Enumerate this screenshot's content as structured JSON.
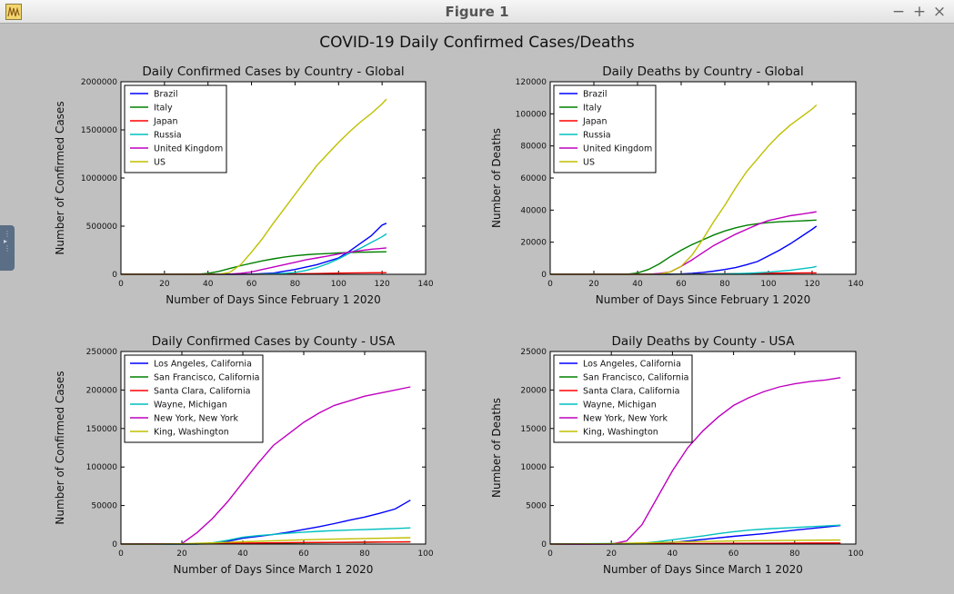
{
  "window": {
    "title": "Figure 1",
    "icon": "matplotlib-app-icon",
    "buttons": [
      {
        "name": "minimize-button",
        "label": "−"
      },
      {
        "name": "maximize-button",
        "label": "+"
      },
      {
        "name": "close-button",
        "label": "×"
      }
    ]
  },
  "figure_title": "COVID-19 Daily Confirmed Cases/Deaths",
  "colors": {
    "blue": "#0000ff",
    "green": "#008000",
    "red": "#ff0000",
    "cyan": "#00bfbf",
    "magenta": "#bf00bf",
    "yellow": "#bfbf00",
    "background": "#c0c0c0"
  },
  "chart_data": [
    {
      "type": "line",
      "title": "Daily Confirmed Cases by Country - Global",
      "xlabel": "Number of Days Since February 1 2020",
      "ylabel": "Number of Confirmed Cases",
      "xlim": [
        0,
        140
      ],
      "ylim": [
        0,
        2000000
      ],
      "xticks": [
        "0",
        "20",
        "40",
        "60",
        "80",
        "100",
        "120",
        "140"
      ],
      "yticks": [
        "0",
        "500000",
        "1000000",
        "1500000",
        "2000000"
      ],
      "legend": "upper-left",
      "series": [
        {
          "name": "Brazil",
          "color": "#0000ff",
          "x": [
            0,
            50,
            60,
            70,
            80,
            90,
            100,
            105,
            110,
            115,
            120,
            122
          ],
          "y": [
            0,
            0,
            2000,
            12000,
            50000,
            100000,
            170000,
            240000,
            320000,
            400000,
            510000,
            530000
          ]
        },
        {
          "name": "Italy",
          "color": "#008000",
          "x": [
            0,
            29,
            35,
            40,
            45,
            50,
            55,
            60,
            65,
            70,
            75,
            80,
            85,
            90,
            95,
            100,
            105,
            110,
            115,
            120,
            122
          ],
          "y": [
            0,
            0,
            1000,
            9000,
            30000,
            60000,
            90000,
            115000,
            140000,
            160000,
            178000,
            192000,
            203000,
            210000,
            215000,
            222000,
            226000,
            229000,
            231000,
            233000,
            234000
          ]
        },
        {
          "name": "Japan",
          "color": "#ff0000",
          "x": [
            0,
            60,
            70,
            80,
            90,
            100,
            110,
            122
          ],
          "y": [
            0,
            500,
            2000,
            4500,
            8000,
            12000,
            15000,
            17000
          ]
        },
        {
          "name": "Russia",
          "color": "#00bfbf",
          "x": [
            0,
            60,
            65,
            70,
            75,
            80,
            85,
            90,
            95,
            100,
            105,
            110,
            115,
            120,
            122
          ],
          "y": [
            0,
            500,
            1500,
            4500,
            10000,
            20000,
            40000,
            70000,
            110000,
            160000,
            220000,
            270000,
            330000,
            390000,
            420000
          ]
        },
        {
          "name": "United Kingdom",
          "color": "#bf00bf",
          "x": [
            0,
            40,
            50,
            55,
            60,
            65,
            70,
            75,
            80,
            85,
            90,
            95,
            100,
            105,
            110,
            115,
            120,
            122
          ],
          "y": [
            0,
            0,
            2000,
            10000,
            25000,
            50000,
            75000,
            100000,
            125000,
            150000,
            170000,
            190000,
            210000,
            230000,
            245000,
            260000,
            270000,
            275000
          ]
        },
        {
          "name": "US",
          "color": "#bfbf00",
          "x": [
            0,
            45,
            50,
            55,
            60,
            65,
            70,
            75,
            80,
            85,
            90,
            95,
            100,
            105,
            110,
            115,
            120,
            122
          ],
          "y": [
            0,
            0,
            20000,
            100000,
            230000,
            370000,
            530000,
            680000,
            830000,
            980000,
            1130000,
            1250000,
            1370000,
            1480000,
            1580000,
            1670000,
            1770000,
            1820000
          ]
        }
      ]
    },
    {
      "type": "line",
      "title": "Daily Deaths by Country - Global",
      "xlabel": "Number of Days Since February 1 2020",
      "ylabel": "Number of Deaths",
      "xlim": [
        0,
        140
      ],
      "ylim": [
        0,
        120000
      ],
      "xticks": [
        "0",
        "20",
        "40",
        "60",
        "80",
        "100",
        "120",
        "140"
      ],
      "yticks": [
        "0",
        "20000",
        "40000",
        "60000",
        "80000",
        "100000",
        "120000"
      ],
      "legend": "upper-left",
      "series": [
        {
          "name": "Brazil",
          "color": "#0000ff",
          "x": [
            0,
            55,
            60,
            65,
            70,
            75,
            80,
            85,
            90,
            95,
            100,
            105,
            110,
            115,
            120,
            122
          ],
          "y": [
            0,
            0,
            200,
            600,
            1200,
            2000,
            3000,
            4200,
            6000,
            8000,
            11500,
            15000,
            19000,
            23500,
            28000,
            30000
          ]
        },
        {
          "name": "Italy",
          "color": "#008000",
          "x": [
            0,
            35,
            40,
            45,
            50,
            55,
            60,
            65,
            70,
            75,
            80,
            85,
            90,
            95,
            100,
            105,
            110,
            115,
            120,
            122
          ],
          "y": [
            0,
            0,
            800,
            3000,
            6500,
            11000,
            15000,
            18500,
            21500,
            24500,
            27000,
            29000,
            30500,
            31500,
            32200,
            32700,
            33000,
            33300,
            33600,
            33800
          ]
        },
        {
          "name": "Japan",
          "color": "#ff0000",
          "x": [
            0,
            60,
            80,
            100,
            122
          ],
          "y": [
            0,
            50,
            300,
            700,
            900
          ]
        },
        {
          "name": "Russia",
          "color": "#00bfbf",
          "x": [
            0,
            70,
            80,
            90,
            100,
            110,
            120,
            122
          ],
          "y": [
            0,
            50,
            200,
            600,
            1300,
            2500,
            4300,
            4900
          ]
        },
        {
          "name": "United Kingdom",
          "color": "#bf00bf",
          "x": [
            0,
            45,
            50,
            55,
            60,
            65,
            70,
            75,
            80,
            85,
            90,
            95,
            100,
            105,
            110,
            115,
            120,
            122
          ],
          "y": [
            0,
            0,
            500,
            1500,
            5000,
            9000,
            13500,
            18000,
            21500,
            25000,
            28000,
            31000,
            33500,
            35000,
            36500,
            37500,
            38500,
            39000
          ]
        },
        {
          "name": "US",
          "color": "#bfbf00",
          "x": [
            0,
            45,
            50,
            55,
            60,
            65,
            70,
            75,
            80,
            85,
            90,
            95,
            100,
            105,
            110,
            115,
            120,
            122
          ],
          "y": [
            0,
            0,
            100,
            1500,
            5000,
            12000,
            22000,
            33000,
            43000,
            54000,
            64000,
            72000,
            80000,
            87000,
            93000,
            98000,
            103000,
            105500
          ]
        }
      ]
    },
    {
      "type": "line",
      "title": "Daily Confirmed Cases by County - USA",
      "xlabel": "Number of Days Since March 1 2020",
      "ylabel": "Number of Confirmed Cases",
      "xlim": [
        0,
        100
      ],
      "ylim": [
        0,
        250000
      ],
      "xticks": [
        "0",
        "20",
        "40",
        "60",
        "80",
        "100"
      ],
      "yticks": [
        "0",
        "50000",
        "100000",
        "150000",
        "200000",
        "250000"
      ],
      "legend": "upper-left",
      "series": [
        {
          "name": "Los Angeles, California",
          "color": "#0000ff",
          "x": [
            0,
            25,
            30,
            35,
            40,
            45,
            50,
            55,
            60,
            65,
            70,
            75,
            80,
            85,
            90,
            95
          ],
          "y": [
            0,
            100,
            1000,
            3500,
            7500,
            10000,
            12500,
            15500,
            19000,
            22500,
            26500,
            31000,
            35000,
            40000,
            45500,
            57000
          ]
        },
        {
          "name": "San Francisco, California",
          "color": "#008000",
          "x": [
            0,
            25,
            40,
            60,
            80,
            95
          ],
          "y": [
            0,
            100,
            700,
            1600,
            2300,
            2800
          ]
        },
        {
          "name": "Santa Clara, California",
          "color": "#ff0000",
          "x": [
            0,
            25,
            40,
            60,
            80,
            95
          ],
          "y": [
            0,
            200,
            1300,
            2000,
            2500,
            2800
          ]
        },
        {
          "name": "Wayne, Michigan",
          "color": "#00bfbf",
          "x": [
            0,
            25,
            30,
            35,
            40,
            45,
            50,
            55,
            60,
            65,
            70,
            75,
            80,
            85,
            90,
            95
          ],
          "y": [
            0,
            100,
            1500,
            5000,
            9000,
            11000,
            12500,
            14000,
            15500,
            16500,
            17500,
            18200,
            18800,
            19500,
            20200,
            21000
          ]
        },
        {
          "name": "New York, New York",
          "color": "#bf00bf",
          "x": [
            0,
            20,
            25,
            30,
            35,
            40,
            45,
            50,
            55,
            60,
            65,
            70,
            75,
            80,
            85,
            90,
            95
          ],
          "y": [
            0,
            500,
            15000,
            33000,
            55000,
            80000,
            105000,
            128000,
            143000,
            158000,
            170000,
            180000,
            186000,
            192000,
            196000,
            200000,
            204000
          ]
        },
        {
          "name": "King, Washington",
          "color": "#bfbf00",
          "x": [
            0,
            10,
            20,
            30,
            40,
            50,
            60,
            70,
            80,
            95
          ],
          "y": [
            0,
            50,
            400,
            1500,
            3000,
            4300,
            5500,
            6400,
            7200,
            8300
          ]
        }
      ]
    },
    {
      "type": "line",
      "title": "Daily Deaths by County - USA",
      "xlabel": "Number of Days Since March 1 2020",
      "ylabel": "Number of Deaths",
      "xlim": [
        0,
        100
      ],
      "ylim": [
        0,
        25000
      ],
      "xticks": [
        "0",
        "20",
        "40",
        "60",
        "80",
        "100"
      ],
      "yticks": [
        "0",
        "5000",
        "10000",
        "15000",
        "20000",
        "25000"
      ],
      "legend": "upper-left",
      "series": [
        {
          "name": "Los Angeles, California",
          "color": "#0000ff",
          "x": [
            0,
            30,
            40,
            50,
            60,
            70,
            80,
            90,
            95
          ],
          "y": [
            0,
            20,
            200,
            600,
            1000,
            1350,
            1800,
            2200,
            2400
          ]
        },
        {
          "name": "San Francisco, California",
          "color": "#008000",
          "x": [
            0,
            40,
            60,
            80,
            95
          ],
          "y": [
            0,
            20,
            45,
            60,
            70
          ]
        },
        {
          "name": "Santa Clara, California",
          "color": "#ff0000",
          "x": [
            0,
            40,
            60,
            80,
            95
          ],
          "y": [
            0,
            50,
            100,
            130,
            140
          ]
        },
        {
          "name": "Wayne, Michigan",
          "color": "#00bfbf",
          "x": [
            0,
            30,
            35,
            40,
            45,
            50,
            55,
            60,
            65,
            70,
            75,
            80,
            85,
            90,
            95
          ],
          "y": [
            0,
            100,
            300,
            550,
            800,
            1050,
            1350,
            1600,
            1800,
            1950,
            2050,
            2150,
            2250,
            2350,
            2450
          ]
        },
        {
          "name": "New York, New York",
          "color": "#bf00bf",
          "x": [
            0,
            20,
            25,
            30,
            35,
            40,
            45,
            50,
            55,
            60,
            65,
            70,
            75,
            80,
            85,
            90,
            95
          ],
          "y": [
            0,
            0,
            400,
            2500,
            6000,
            9500,
            12500,
            14700,
            16500,
            18000,
            19000,
            19800,
            20400,
            20800,
            21100,
            21300,
            21600
          ]
        },
        {
          "name": "King, Washington",
          "color": "#bfbf00",
          "x": [
            0,
            20,
            40,
            60,
            80,
            95
          ],
          "y": [
            0,
            50,
            250,
            400,
            480,
            520
          ]
        }
      ]
    }
  ]
}
